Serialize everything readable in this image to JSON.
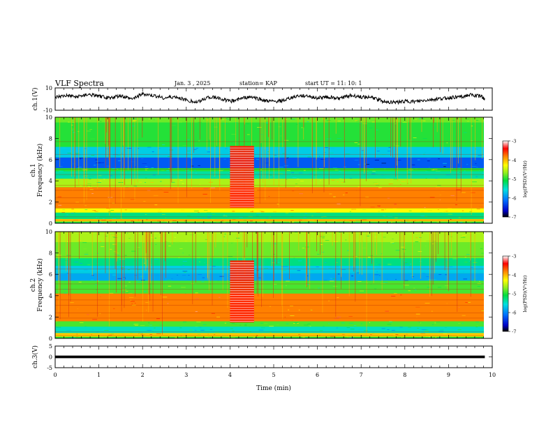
{
  "header": {
    "title": "VLF Spectra",
    "date": "Jan. 3 , 2025",
    "station": "station= KAP",
    "start": "start UT = 11: 10: 1"
  },
  "chart_data": [
    {
      "type": "line",
      "panel": "waveform-ch1",
      "ylabel": "ch.1(V)",
      "ylim": [
        -10,
        10
      ],
      "yticks": [
        "10",
        "-10"
      ],
      "xlim": [
        0,
        10
      ],
      "series": [
        {
          "x": [
            0,
            0.25,
            0.5,
            0.75,
            1,
            1.25,
            1.5,
            1.75,
            2,
            2.25,
            2.5,
            2.75,
            3,
            3.25,
            3.5,
            3.75,
            4,
            4.25,
            4.5,
            4.75,
            5,
            5.25,
            5.5,
            5.75,
            6,
            6.25,
            6.5,
            6.75,
            7,
            7.25,
            7.5,
            7.75,
            8,
            8.25,
            8.5,
            8.75,
            9,
            9.25,
            9.5,
            9.75,
            9.83
          ],
          "y": [
            1.5,
            3,
            2,
            4,
            2.5,
            1,
            3,
            0,
            4.5,
            3,
            1,
            2,
            -1,
            -3,
            2,
            1,
            -2,
            0.5,
            2,
            -1,
            -2.5,
            -1,
            2.5,
            3,
            1,
            2,
            0.5,
            3,
            2,
            1.5,
            -2,
            -3,
            -2,
            -2.5,
            -1,
            0,
            1,
            2,
            3.5,
            2.5,
            0
          ]
        }
      ]
    },
    {
      "type": "heatmap",
      "panel": "spectrogram-ch1",
      "ylabel": "ch.1\nFrequency (kHz)",
      "ylim": [
        0,
        10
      ],
      "yticks": [
        "0",
        "2",
        "4",
        "6",
        "8",
        "10"
      ],
      "xlim": [
        0,
        10
      ],
      "colorbar": {
        "label": "log(PSD)(V²/Hz)",
        "range": [
          -7,
          -3
        ],
        "ticks": [
          "-3",
          "-4",
          "-5",
          "-6",
          "-7"
        ]
      },
      "bands_khz": [
        [
          9.5,
          10,
          -4.8
        ],
        [
          7.2,
          9.5,
          -5.0
        ],
        [
          6.2,
          7.2,
          -5.7
        ],
        [
          5.2,
          6.2,
          -6.3
        ],
        [
          4.9,
          5.2,
          -5.0
        ],
        [
          4.2,
          4.9,
          -5.4
        ],
        [
          3.4,
          4.2,
          -4.6
        ],
        [
          1.4,
          3.4,
          -3.8
        ],
        [
          1.0,
          1.4,
          -4.3
        ],
        [
          0.4,
          1.0,
          -5.3
        ],
        [
          0.15,
          0.4,
          -4.1
        ],
        [
          0,
          0.15,
          -5.0
        ]
      ],
      "burst_minutes": [
        4.0,
        4.55
      ]
    },
    {
      "type": "heatmap",
      "panel": "spectrogram-ch2",
      "ylabel": "ch.2\nFrequency (kHz)",
      "ylim": [
        0,
        10
      ],
      "yticks": [
        "0",
        "2",
        "4",
        "6",
        "8",
        "10"
      ],
      "xlim": [
        0,
        10
      ],
      "colorbar": {
        "label": "log(PSD)(V²/Hz)",
        "range": [
          -7,
          -3
        ],
        "ticks": [
          "-3",
          "-4",
          "-5",
          "-6",
          "-7"
        ]
      },
      "bands_khz": [
        [
          9.0,
          10,
          -4.6
        ],
        [
          7.5,
          9.0,
          -4.8
        ],
        [
          6.8,
          7.5,
          -5.3
        ],
        [
          6.1,
          6.8,
          -5.7
        ],
        [
          5.4,
          6.1,
          -5.9
        ],
        [
          4.2,
          5.4,
          -4.9
        ],
        [
          1.6,
          4.2,
          -3.8
        ],
        [
          1.1,
          1.6,
          -4.9
        ],
        [
          0.5,
          1.1,
          -5.5
        ],
        [
          0.15,
          0.5,
          -4.1
        ],
        [
          0,
          0.15,
          -5.0
        ]
      ],
      "burst_minutes": [
        4.0,
        4.55
      ]
    },
    {
      "type": "line",
      "panel": "waveform-ch3",
      "ylabel": "ch.3(V)",
      "ylim": [
        -5,
        5
      ],
      "yticks": [
        "5",
        "0",
        "-5"
      ],
      "xlim": [
        0,
        10
      ],
      "xlabel": "Time (min)",
      "xticks": [
        "0",
        "1",
        "2",
        "3",
        "4",
        "5",
        "6",
        "7",
        "8",
        "9",
        "10"
      ],
      "series": [
        {
          "x": [
            0,
            9.83
          ],
          "y": [
            0,
            0
          ]
        }
      ]
    }
  ]
}
